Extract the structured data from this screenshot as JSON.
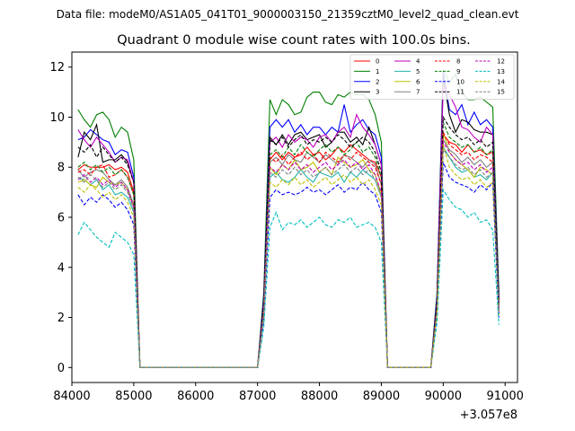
{
  "header": {
    "data_file": "Data file: modeM0/AS1A05_041T01_9000003150_21359cztM0_level2_quad_clean.evt"
  },
  "chart_data": {
    "type": "line",
    "title": "Quadrant 0 module wise count rates with 100.0s bins.",
    "xlabel": "",
    "ylabel": "",
    "offset_label": "+3.057e8",
    "xlim": [
      84000,
      91200
    ],
    "ylim": [
      -0.6,
      12.6
    ],
    "x_ticks": [
      84000,
      85000,
      86000,
      87000,
      88000,
      89000,
      90000,
      91000
    ],
    "x_tick_labels": [
      "84000",
      "85000",
      "86000",
      "87000",
      "88000",
      "89000",
      "90000",
      "91000"
    ],
    "y_ticks": [
      0,
      2,
      4,
      6,
      8,
      10,
      12
    ],
    "y_tick_labels": [
      "0",
      "2",
      "4",
      "6",
      "8",
      "10",
      "12"
    ],
    "grid": false,
    "legend_position": "top-right",
    "legend_columns": 4,
    "x": [
      84100,
      84200,
      84300,
      84400,
      84500,
      84600,
      84700,
      84800,
      84900,
      85000,
      85100,
      85200,
      85300,
      85400,
      85500,
      85600,
      85700,
      85800,
      85900,
      86000,
      86100,
      86200,
      86300,
      86400,
      86500,
      86600,
      86700,
      86800,
      86900,
      87000,
      87100,
      87200,
      87300,
      87400,
      87500,
      87600,
      87700,
      87800,
      87900,
      88000,
      88100,
      88200,
      88300,
      88400,
      88500,
      88600,
      88700,
      88800,
      88900,
      89000,
      89100,
      89200,
      89300,
      89400,
      89500,
      89600,
      89700,
      89800,
      89900,
      90000,
      90100,
      90200,
      90300,
      90400,
      90500,
      90600,
      90700,
      90800,
      90900
    ],
    "series": [
      {
        "name": "0",
        "color": "#ff0000",
        "dash": "solid",
        "values": [
          7.9,
          8.1,
          8.0,
          8.0,
          8.0,
          8.1,
          7.9,
          8.0,
          7.8,
          7.0,
          0,
          0,
          0,
          0,
          0,
          0,
          0,
          0,
          0,
          0,
          0,
          0,
          0,
          0,
          0,
          0,
          0,
          0,
          0,
          0,
          2.4,
          8.3,
          8.6,
          8.3,
          8.6,
          8.4,
          8.5,
          8.8,
          8.5,
          8.6,
          8.3,
          8.5,
          8.8,
          8.6,
          8.9,
          8.7,
          8.5,
          8.3,
          8.2,
          7.6,
          0,
          0,
          0,
          0,
          0,
          0,
          0,
          0,
          2.5,
          9.3,
          9.0,
          8.9,
          8.6,
          8.9,
          8.6,
          8.7,
          8.5,
          8.6,
          2.5
        ]
      },
      {
        "name": "1",
        "color": "#008000",
        "dash": "solid",
        "values": [
          10.3,
          9.9,
          9.6,
          10.1,
          10.2,
          9.9,
          9.2,
          9.6,
          9.4,
          8.3,
          0,
          0,
          0,
          0,
          0,
          0,
          0,
          0,
          0,
          0,
          0,
          0,
          0,
          0,
          0,
          0,
          0,
          0,
          0,
          0,
          3.0,
          10.7,
          10.1,
          10.7,
          10.5,
          10.1,
          10.2,
          10.8,
          11.0,
          11.0,
          10.6,
          10.5,
          10.9,
          10.8,
          11.0,
          10.9,
          10.9,
          10.7,
          10.1,
          9.0,
          0,
          0,
          0,
          0,
          0,
          0,
          0,
          0,
          3.0,
          11.9,
          11.4,
          11.7,
          11.0,
          10.7,
          10.7,
          10.8,
          10.6,
          10.4,
          3.0
        ]
      },
      {
        "name": "2",
        "color": "#0000ff",
        "dash": "solid",
        "values": [
          9.1,
          9.2,
          9.5,
          9.3,
          9.1,
          9.0,
          8.5,
          8.7,
          8.6,
          7.6,
          0,
          0,
          0,
          0,
          0,
          0,
          0,
          0,
          0,
          0,
          0,
          0,
          0,
          0,
          0,
          0,
          0,
          0,
          0,
          0,
          2.8,
          9.6,
          9.9,
          9.6,
          9.9,
          9.4,
          9.7,
          9.3,
          9.6,
          9.6,
          9.3,
          9.6,
          9.4,
          10.5,
          9.4,
          9.7,
          9.9,
          9.5,
          9.3,
          8.4,
          0,
          0,
          0,
          0,
          0,
          0,
          0,
          0,
          2.9,
          11.8,
          10.3,
          10.1,
          10.5,
          9.7,
          10.2,
          9.7,
          9.9,
          9.6,
          2.8
        ]
      },
      {
        "name": "3",
        "color": "#000000",
        "dash": "solid",
        "values": [
          8.4,
          9.4,
          9.1,
          9.7,
          8.2,
          8.3,
          8.3,
          8.5,
          8.2,
          7.4,
          0,
          0,
          0,
          0,
          0,
          0,
          0,
          0,
          0,
          0,
          0,
          0,
          0,
          0,
          0,
          0,
          0,
          0,
          0,
          0,
          2.6,
          9.2,
          8.9,
          9.3,
          8.9,
          9.3,
          9.4,
          9.1,
          9.2,
          9.3,
          8.8,
          9.0,
          9.4,
          9.4,
          9.0,
          9.2,
          8.9,
          9.6,
          8.9,
          8.1,
          0,
          0,
          0,
          0,
          0,
          0,
          0,
          0,
          2.7,
          11.6,
          10.1,
          9.4,
          9.9,
          9.8,
          9.5,
          9.4,
          9.4,
          9.3,
          2.6
        ]
      },
      {
        "name": "4",
        "color": "#bf00bf",
        "dash": "solid",
        "values": [
          9.5,
          9.1,
          8.8,
          9.2,
          8.9,
          8.6,
          8.2,
          8.4,
          8.3,
          7.4,
          0,
          0,
          0,
          0,
          0,
          0,
          0,
          0,
          0,
          0,
          0,
          0,
          0,
          0,
          0,
          0,
          0,
          0,
          0,
          0,
          2.6,
          9.0,
          9.2,
          8.8,
          9.3,
          9.0,
          9.2,
          9.1,
          8.8,
          9.2,
          9.3,
          9.0,
          9.4,
          9.6,
          9.2,
          10.1,
          9.6,
          9.3,
          8.9,
          8.1,
          0,
          0,
          0,
          0,
          0,
          0,
          0,
          0,
          2.7,
          11.2,
          10.9,
          10.4,
          9.6,
          9.5,
          9.2,
          9.0,
          9.6,
          9.3,
          2.6
        ]
      },
      {
        "name": "5",
        "color": "#20b2aa",
        "dash": "solid",
        "values": [
          7.6,
          7.5,
          7.3,
          7.5,
          7.1,
          7.3,
          6.9,
          7.0,
          6.8,
          6.2,
          0,
          0,
          0,
          0,
          0,
          0,
          0,
          0,
          0,
          0,
          0,
          0,
          0,
          0,
          0,
          0,
          0,
          0,
          0,
          0,
          2.1,
          7.6,
          7.8,
          7.5,
          7.4,
          7.6,
          7.9,
          7.6,
          7.4,
          7.8,
          7.7,
          7.6,
          7.8,
          7.4,
          7.8,
          7.6,
          7.9,
          7.7,
          7.5,
          6.8,
          0,
          0,
          0,
          0,
          0,
          0,
          0,
          0,
          2.2,
          8.8,
          8.4,
          8.0,
          7.8,
          7.9,
          7.6,
          7.7,
          7.5,
          7.8,
          2.1
        ]
      },
      {
        "name": "6",
        "color": "#bfbf00",
        "dash": "solid",
        "values": [
          7.4,
          7.5,
          7.3,
          7.2,
          7.6,
          7.4,
          7.3,
          7.4,
          7.1,
          6.4,
          0,
          0,
          0,
          0,
          0,
          0,
          0,
          0,
          0,
          0,
          0,
          0,
          0,
          0,
          0,
          0,
          0,
          0,
          0,
          0,
          2.2,
          8.0,
          7.7,
          8.1,
          7.9,
          8.3,
          7.9,
          8.0,
          8.2,
          7.8,
          8.0,
          7.7,
          8.4,
          8.2,
          8.0,
          8.1,
          8.3,
          7.9,
          7.7,
          6.9,
          0,
          0,
          0,
          0,
          0,
          0,
          0,
          0,
          2.3,
          9.4,
          8.6,
          8.3,
          8.1,
          7.9,
          7.6,
          8.0,
          7.9,
          7.7,
          2.2
        ]
      },
      {
        "name": "7",
        "color": "#808080",
        "dash": "solid",
        "values": [
          7.9,
          7.6,
          7.8,
          7.9,
          7.8,
          7.5,
          7.3,
          7.5,
          7.2,
          6.5,
          0,
          0,
          0,
          0,
          0,
          0,
          0,
          0,
          0,
          0,
          0,
          0,
          0,
          0,
          0,
          0,
          0,
          0,
          0,
          0,
          2.3,
          8.2,
          8.4,
          8.1,
          8.5,
          8.3,
          8.2,
          8.6,
          8.4,
          8.2,
          8.5,
          8.3,
          8.1,
          8.5,
          8.4,
          8.2,
          8.0,
          8.3,
          8.1,
          7.3,
          0,
          0,
          0,
          0,
          0,
          0,
          0,
          0,
          2.4,
          9.1,
          8.7,
          8.5,
          8.2,
          8.4,
          8.1,
          8.3,
          8.0,
          8.2,
          2.3
        ]
      },
      {
        "name": "8",
        "color": "#ff0000",
        "dash": "dashed",
        "values": [
          7.8,
          7.9,
          7.7,
          8.0,
          8.1,
          7.6,
          7.7,
          7.9,
          7.6,
          6.9,
          0,
          0,
          0,
          0,
          0,
          0,
          0,
          0,
          0,
          0,
          0,
          0,
          0,
          0,
          0,
          0,
          0,
          0,
          0,
          0,
          2.4,
          8.4,
          8.2,
          8.5,
          8.1,
          8.4,
          8.6,
          8.3,
          8.5,
          8.2,
          8.6,
          8.4,
          8.2,
          8.5,
          8.3,
          8.6,
          8.4,
          8.2,
          8.0,
          7.3,
          0,
          0,
          0,
          0,
          0,
          0,
          0,
          0,
          2.5,
          9.4,
          8.9,
          8.7,
          8.5,
          8.6,
          8.3,
          8.5,
          8.4,
          8.2,
          2.4
        ]
      },
      {
        "name": "9",
        "color": "#008000",
        "dash": "dashed",
        "values": [
          8.0,
          8.2,
          7.9,
          8.1,
          7.8,
          8.0,
          7.7,
          7.9,
          7.6,
          6.9,
          0,
          0,
          0,
          0,
          0,
          0,
          0,
          0,
          0,
          0,
          0,
          0,
          0,
          0,
          0,
          0,
          0,
          0,
          0,
          0,
          2.4,
          8.5,
          8.7,
          8.4,
          8.8,
          8.5,
          8.9,
          8.6,
          8.4,
          8.7,
          8.9,
          8.6,
          8.8,
          8.5,
          8.7,
          9.0,
          8.6,
          8.8,
          8.4,
          7.6,
          0,
          0,
          0,
          0,
          0,
          0,
          0,
          0,
          2.6,
          9.8,
          9.2,
          9.0,
          8.8,
          8.9,
          8.6,
          8.8,
          8.5,
          8.7,
          2.5
        ]
      },
      {
        "name": "10",
        "color": "#0000ff",
        "dash": "dashed",
        "values": [
          6.9,
          6.5,
          6.8,
          6.6,
          6.9,
          6.7,
          6.4,
          6.6,
          6.3,
          5.7,
          0,
          0,
          0,
          0,
          0,
          0,
          0,
          0,
          0,
          0,
          0,
          0,
          0,
          0,
          0,
          0,
          0,
          0,
          0,
          0,
          1.9,
          6.8,
          7.1,
          6.9,
          7.0,
          6.9,
          7.0,
          7.2,
          7.0,
          7.1,
          6.9,
          7.1,
          7.3,
          7.0,
          7.2,
          7.1,
          7.4,
          7.1,
          6.9,
          6.2,
          0,
          0,
          0,
          0,
          0,
          0,
          0,
          0,
          2.0,
          8.2,
          7.6,
          7.4,
          7.3,
          7.2,
          7.0,
          7.3,
          7.1,
          7.4,
          2.0
        ]
      },
      {
        "name": "11",
        "color": "#000000",
        "dash": "dashed",
        "values": [
          8.8,
          8.6,
          8.9,
          8.4,
          8.8,
          8.5,
          8.2,
          8.4,
          8.1,
          7.4,
          0,
          0,
          0,
          0,
          0,
          0,
          0,
          0,
          0,
          0,
          0,
          0,
          0,
          0,
          0,
          0,
          0,
          0,
          0,
          0,
          2.6,
          9.1,
          8.9,
          9.2,
          8.8,
          9.1,
          9.3,
          8.9,
          9.1,
          9.0,
          9.2,
          9.0,
          9.3,
          9.1,
          8.8,
          9.0,
          9.2,
          9.0,
          8.6,
          7.8,
          0,
          0,
          0,
          0,
          0,
          0,
          0,
          0,
          2.7,
          10.0,
          9.6,
          9.3,
          9.1,
          9.2,
          8.9,
          9.1,
          8.8,
          9.0,
          2.6
        ]
      },
      {
        "name": "12",
        "color": "#bf00bf",
        "dash": "dashed",
        "values": [
          7.5,
          7.7,
          7.4,
          7.6,
          7.3,
          7.5,
          7.2,
          7.4,
          7.1,
          6.4,
          0,
          0,
          0,
          0,
          0,
          0,
          0,
          0,
          0,
          0,
          0,
          0,
          0,
          0,
          0,
          0,
          0,
          0,
          0,
          0,
          2.2,
          8.0,
          7.8,
          8.1,
          7.9,
          8.2,
          7.9,
          8.1,
          7.8,
          8.0,
          8.2,
          7.9,
          8.1,
          8.3,
          8.0,
          8.2,
          7.9,
          8.1,
          7.7,
          7.0,
          0,
          0,
          0,
          0,
          0,
          0,
          0,
          0,
          2.3,
          9.0,
          8.6,
          8.3,
          8.1,
          8.2,
          7.9,
          8.1,
          7.8,
          8.0,
          2.2
        ]
      },
      {
        "name": "13",
        "color": "#00bfbf",
        "dash": "dashed",
        "values": [
          5.3,
          5.8,
          5.5,
          5.2,
          5.0,
          4.8,
          5.4,
          5.2,
          5.0,
          4.5,
          0,
          0,
          0,
          0,
          0,
          0,
          0,
          0,
          0,
          0,
          0,
          0,
          0,
          0,
          0,
          0,
          0,
          0,
          0,
          0,
          1.6,
          5.6,
          6.2,
          5.5,
          5.8,
          5.7,
          5.9,
          5.6,
          5.8,
          6.0,
          5.7,
          5.6,
          5.9,
          5.8,
          6.0,
          5.6,
          5.7,
          5.8,
          5.6,
          5.0,
          0,
          0,
          0,
          0,
          0,
          0,
          0,
          0,
          1.8,
          7.1,
          6.7,
          6.4,
          6.3,
          6.0,
          6.2,
          5.8,
          5.9,
          5.5,
          1.7
        ]
      },
      {
        "name": "14",
        "color": "#bfbf00",
        "dash": "dashed",
        "values": [
          7.2,
          7.0,
          7.3,
          7.1,
          6.8,
          7.0,
          6.7,
          6.9,
          6.6,
          6.0,
          0,
          0,
          0,
          0,
          0,
          0,
          0,
          0,
          0,
          0,
          0,
          0,
          0,
          0,
          0,
          0,
          0,
          0,
          0,
          0,
          2.1,
          7.4,
          7.2,
          7.5,
          7.3,
          7.6,
          7.3,
          7.5,
          7.2,
          7.4,
          7.6,
          7.3,
          7.5,
          7.7,
          7.4,
          7.6,
          7.3,
          7.5,
          7.1,
          6.5,
          0,
          0,
          0,
          0,
          0,
          0,
          0,
          0,
          2.2,
          8.9,
          8.0,
          7.7,
          7.5,
          7.6,
          7.3,
          7.5,
          7.2,
          7.4,
          2.1
        ]
      },
      {
        "name": "15",
        "color": "#808080",
        "dash": "dashed",
        "values": [
          7.6,
          7.4,
          7.7,
          7.5,
          7.2,
          7.4,
          7.1,
          7.3,
          7.0,
          6.3,
          0,
          0,
          0,
          0,
          0,
          0,
          0,
          0,
          0,
          0,
          0,
          0,
          0,
          0,
          0,
          0,
          0,
          0,
          0,
          0,
          2.2,
          7.8,
          7.6,
          7.9,
          7.7,
          8.0,
          7.7,
          7.9,
          7.6,
          7.8,
          8.0,
          7.7,
          7.9,
          8.1,
          7.8,
          8.0,
          7.7,
          7.9,
          7.5,
          6.8,
          0,
          0,
          0,
          0,
          0,
          0,
          0,
          0,
          2.3,
          8.7,
          8.4,
          8.1,
          7.9,
          8.0,
          7.7,
          7.9,
          7.6,
          7.8,
          2.2
        ]
      }
    ]
  }
}
